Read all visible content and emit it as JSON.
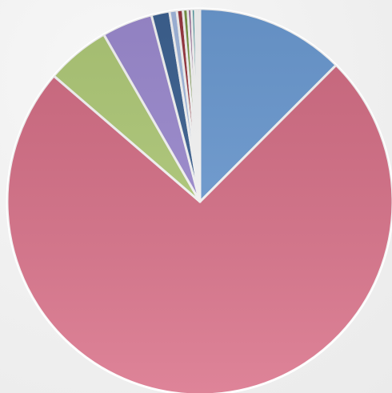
{
  "chart_data": {
    "type": "pie",
    "start_angle_deg": 0,
    "direction": "clockwise",
    "slices": [
      {
        "value": 12.3,
        "color": "#6f9fd8"
      },
      {
        "value": 72.8,
        "color": "#d97088"
      },
      {
        "value": 5.3,
        "color": "#b5d07c"
      },
      {
        "value": 4.2,
        "color": "#a18fd6"
      },
      {
        "value": 1.5,
        "color": "#3f6596"
      },
      {
        "value": 0.6,
        "color": "#a8bfe6"
      },
      {
        "value": 0.5,
        "color": "#9e3a44"
      },
      {
        "value": 0.4,
        "color": "#7c9a4a"
      },
      {
        "value": 0.3,
        "color": "#8a4e86"
      },
      {
        "value": 0.3,
        "color": "#5aa0a8"
      },
      {
        "value": 0.2,
        "color": "#d6a35a"
      },
      {
        "value": 0.2,
        "color": "#6a5aa8"
      }
    ]
  }
}
